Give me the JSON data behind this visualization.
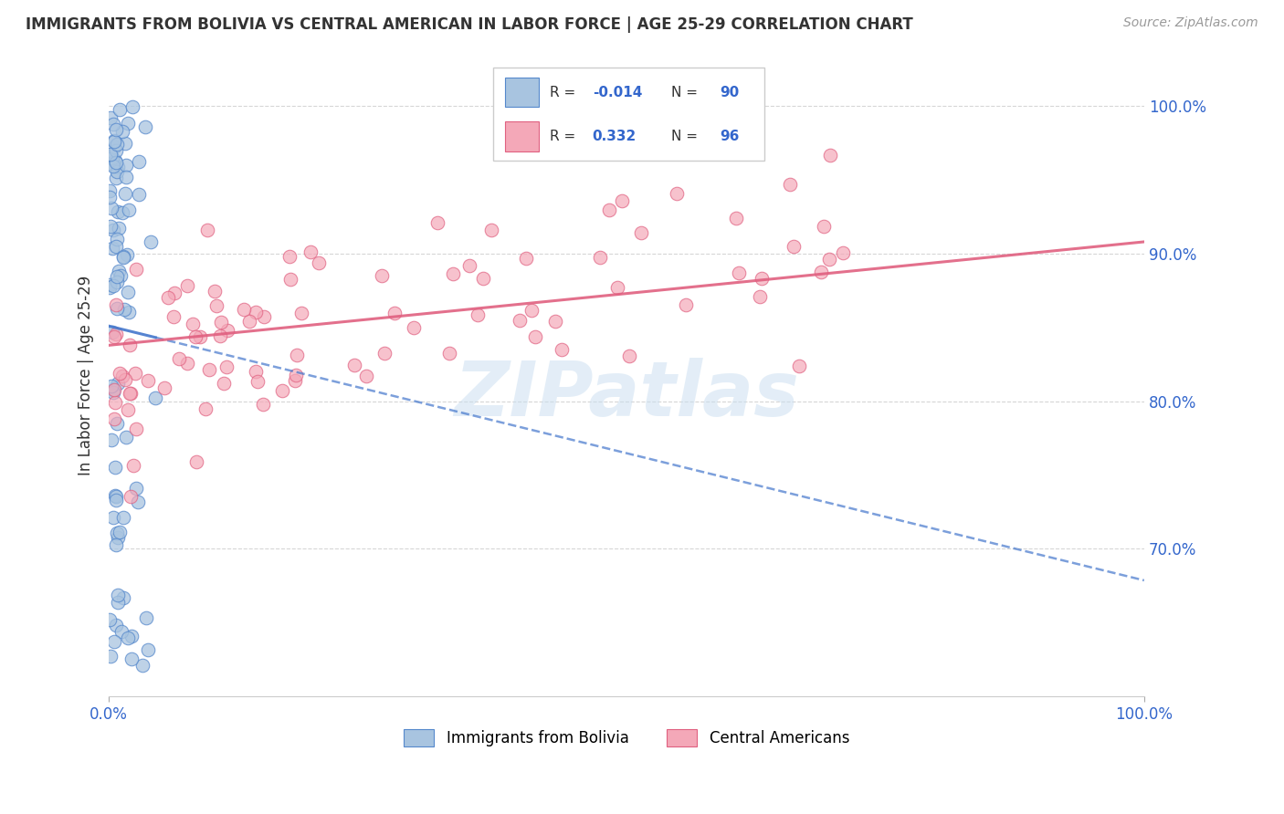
{
  "title": "IMMIGRANTS FROM BOLIVIA VS CENTRAL AMERICAN IN LABOR FORCE | AGE 25-29 CORRELATION CHART",
  "source": "Source: ZipAtlas.com",
  "ylabel": "In Labor Force | Age 25-29",
  "xlim": [
    0.0,
    1.0
  ],
  "ylim": [
    0.6,
    1.03
  ],
  "ytick_labels": [
    "70.0%",
    "80.0%",
    "90.0%",
    "100.0%"
  ],
  "ytick_values": [
    0.7,
    0.8,
    0.9,
    1.0
  ],
  "legend_r_bolivia": "-0.014",
  "legend_n_bolivia": "90",
  "legend_r_central": "0.332",
  "legend_n_central": "96",
  "color_bolivia": "#a8c4e0",
  "color_central": "#f4a8b8",
  "edge_bolivia": "#5588cc",
  "edge_central": "#e06080",
  "trendline_bolivia_color": "#4477cc",
  "trendline_central_color": "#e06080",
  "background_color": "#ffffff",
  "grid_color": "#cccccc",
  "watermark": "ZIPatlas",
  "title_color": "#333333",
  "source_color": "#999999",
  "axis_label_color": "#333333",
  "tick_color": "#3366cc",
  "legend_text_color": "#333333",
  "legend_value_color": "#3366cc"
}
